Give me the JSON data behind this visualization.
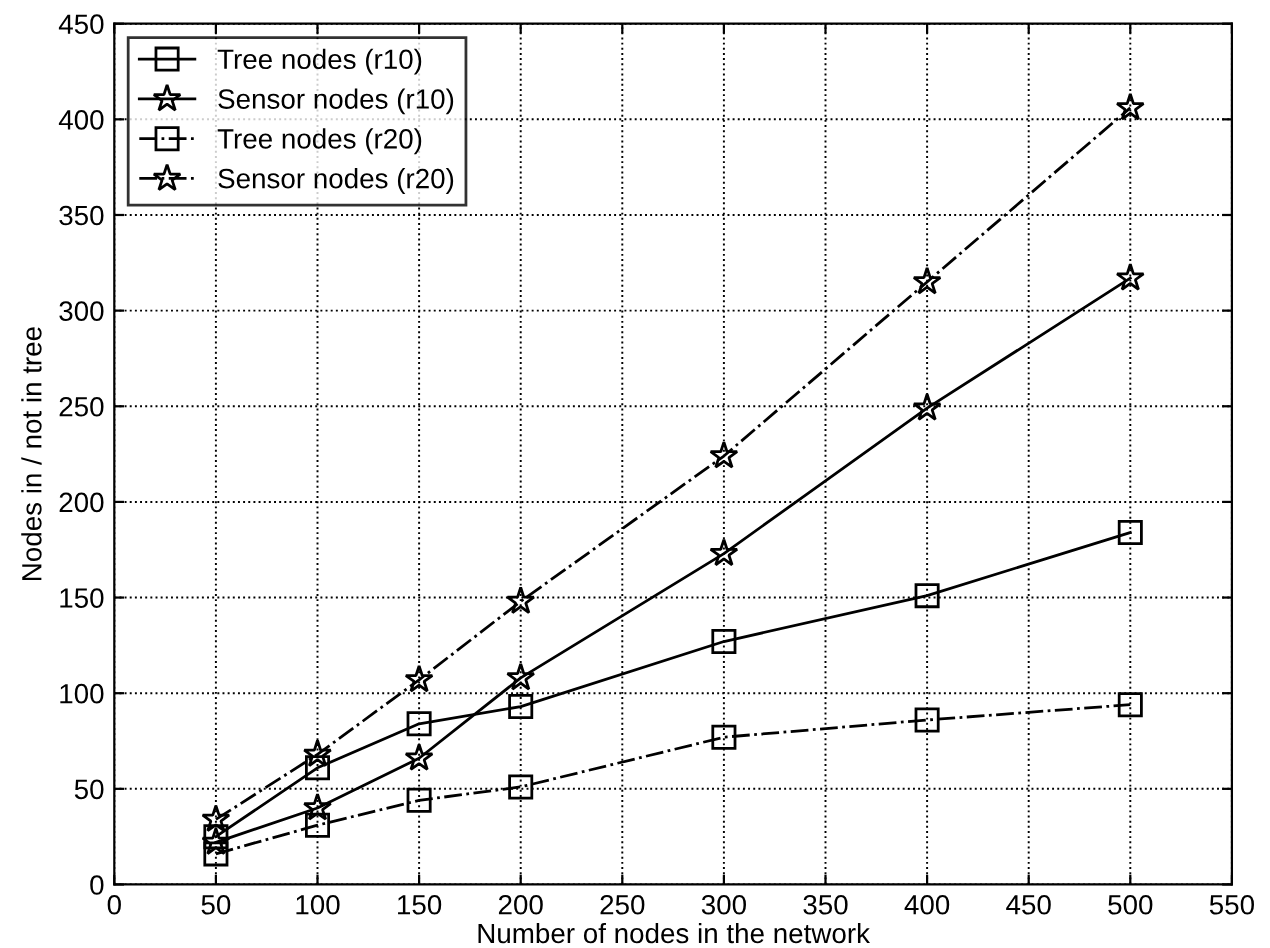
{
  "chart_data": {
    "type": "line",
    "xlabel": "Number of nodes in the network",
    "ylabel": "Nodes in / not in tree",
    "x": [
      50,
      100,
      150,
      200,
      300,
      400,
      500
    ],
    "series": [
      {
        "name": "Tree nodes (r10)",
        "color": "#000000",
        "marker": "square",
        "line_style": "solid",
        "values": [
          25,
          61,
          84,
          93,
          127,
          151,
          184
        ]
      },
      {
        "name": "Sensor nodes (r10)",
        "color": "#000000",
        "marker": "star",
        "line_style": "solid",
        "values": [
          22,
          40,
          66,
          108,
          173,
          249,
          317
        ]
      },
      {
        "name": "Tree nodes (r20)",
        "color": "#000000",
        "marker": "square",
        "line_style": "dashdot",
        "values": [
          16,
          31,
          44,
          51,
          77,
          86,
          94
        ]
      },
      {
        "name": "Sensor nodes (r20)",
        "color": "#000000",
        "marker": "star",
        "line_style": "dashdot",
        "values": [
          34,
          68,
          107,
          148,
          224,
          315,
          406
        ]
      }
    ],
    "xlim": [
      0,
      550
    ],
    "xticks": [
      0,
      50,
      100,
      150,
      200,
      250,
      300,
      350,
      400,
      450,
      500,
      550
    ],
    "ylim": [
      0,
      450
    ],
    "yticks": [
      0,
      50,
      100,
      150,
      200,
      250,
      300,
      350,
      400,
      450
    ],
    "grid": true,
    "legend": "top left"
  }
}
